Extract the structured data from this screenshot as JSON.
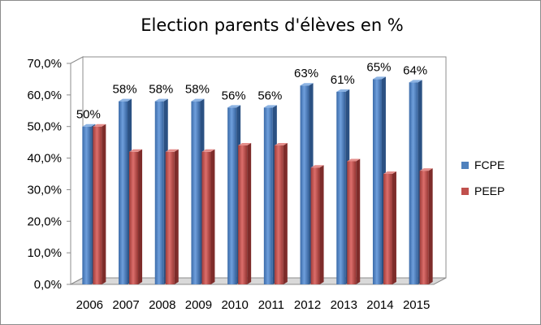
{
  "chart_data": {
    "type": "bar",
    "title": "Election parents d'élèves en %",
    "xlabel": "",
    "ylabel": "",
    "categories": [
      "2006",
      "2007",
      "2008",
      "2009",
      "2010",
      "2011",
      "2012",
      "2013",
      "2014",
      "2015"
    ],
    "series": [
      {
        "name": "FCPE",
        "color": "#4f81bd",
        "values": [
          50,
          58,
          58,
          58,
          56,
          56,
          63,
          61,
          65,
          64
        ],
        "data_labels": [
          "50%",
          "58%",
          "58%",
          "58%",
          "56%",
          "56%",
          "63%",
          "61%",
          "65%",
          "64%"
        ]
      },
      {
        "name": "PEEP",
        "color": "#c0504d",
        "values": [
          50,
          42,
          42,
          42,
          44,
          44,
          37,
          39,
          35,
          36
        ]
      }
    ],
    "ylim": [
      0,
      70
    ],
    "yticks": [
      "0,0%",
      "10,0%",
      "20,0%",
      "30,0%",
      "40,0%",
      "50,0%",
      "60,0%",
      "70,0%"
    ],
    "grid": false,
    "legend_position": "right",
    "style": "3d-clustered-columns"
  }
}
